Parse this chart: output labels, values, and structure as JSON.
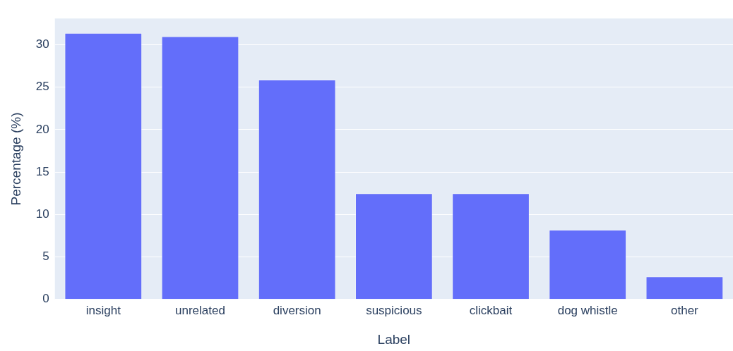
{
  "chart_data": {
    "type": "bar",
    "xlabel": "Label",
    "ylabel": "Percentage (%)",
    "categories": [
      "insight",
      "unrelated",
      "diversion",
      "suspicious",
      "clickbait",
      "dog whistle",
      "other"
    ],
    "values": [
      31.4,
      31.0,
      25.9,
      12.5,
      12.5,
      8.2,
      2.7
    ],
    "color": "#636efa",
    "ylim": [
      0,
      33.1
    ],
    "yticks": [
      0,
      5,
      10,
      15,
      20,
      25,
      30
    ],
    "grid": "y",
    "legend": false
  }
}
